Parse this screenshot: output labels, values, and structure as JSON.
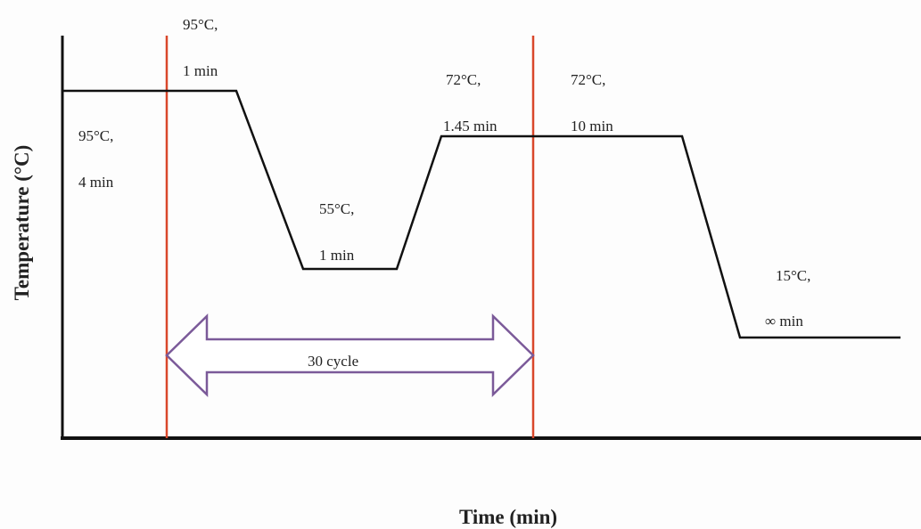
{
  "axes": {
    "y_label": "Temperature (°C)",
    "x_label": "Time (min)"
  },
  "steps": [
    {
      "temp": "95°C,",
      "time": "4 min"
    },
    {
      "temp": "95°C,",
      "time": "1 min"
    },
    {
      "temp": "55°C,",
      "time": "1 min"
    },
    {
      "temp": "72°C,",
      "time": "1.45 min"
    },
    {
      "temp": "72°C,",
      "time": "10 min"
    },
    {
      "temp": "15°C,",
      "time": "∞ min"
    }
  ],
  "cycle_label": "30 cycle"
}
